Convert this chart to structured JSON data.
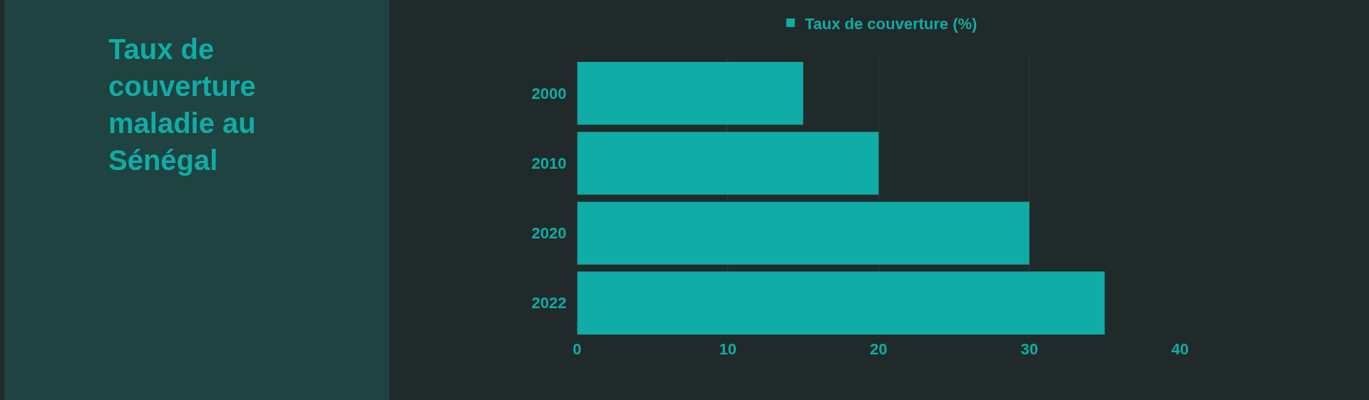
{
  "chart_data": {
    "type": "bar",
    "orientation": "horizontal",
    "title": "Taux de couverture maladie au Sénégal",
    "categories": [
      "2000",
      "2010",
      "2020",
      "2022"
    ],
    "series": [
      {
        "name": "Taux de couverture (%)",
        "color": "#10aca6",
        "values": [
          15,
          20,
          30,
          35
        ]
      }
    ],
    "xlim": [
      0,
      40
    ],
    "xticks": [
      0,
      10,
      20,
      30,
      40
    ],
    "grid": "x",
    "legend": "top"
  }
}
